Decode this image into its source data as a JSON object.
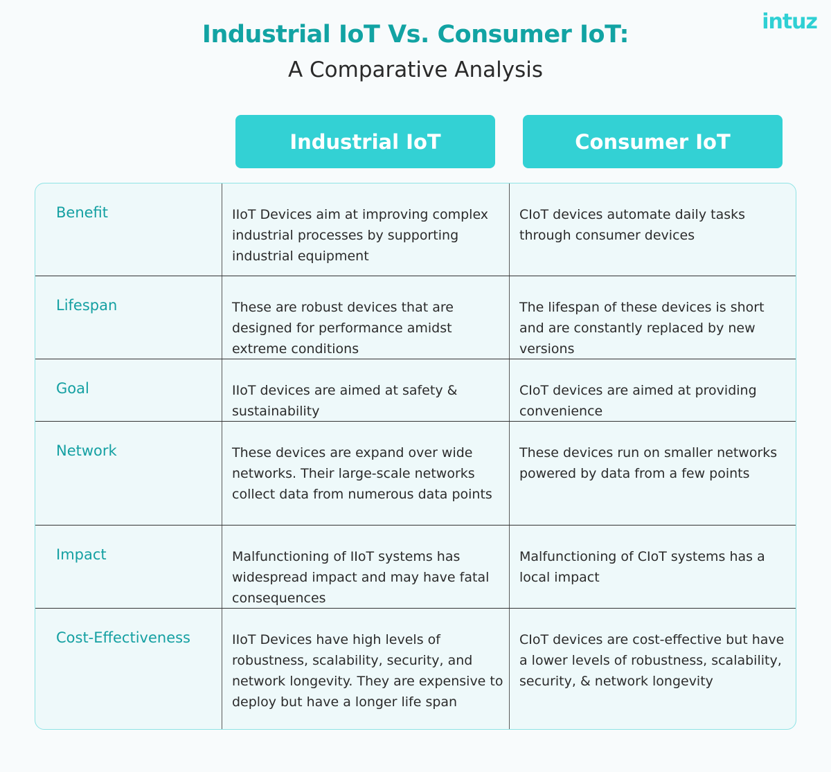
{
  "brand": {
    "logo": "intuz",
    "accent": "#33d1d4",
    "title_color": "#12a3a3"
  },
  "header": {
    "title": "Industrial IoT Vs. Consumer IoT:",
    "subtitle": "A Comparative Analysis"
  },
  "columns": [
    "Industrial IoT",
    "Consumer IoT"
  ],
  "rows": [
    {
      "label": "Benefit",
      "industrial": "IIoT Devices aim at improving complex industrial processes by supporting industrial equipment",
      "consumer": "CIoT devices automate daily tasks through consumer devices"
    },
    {
      "label": "Lifespan",
      "industrial": "These are robust devices that are designed for performance amidst extreme conditions",
      "consumer": "The lifespan of these devices is short and are constantly replaced by new versions"
    },
    {
      "label": "Goal",
      "industrial": "IIoT devices are aimed at safety & sustainability",
      "consumer": "CIoT devices are aimed at providing convenience"
    },
    {
      "label": "Network",
      "industrial": "These devices are expand over wide networks. Their large-scale networks collect data from numerous data points",
      "consumer": "These devices run on smaller networks powered by data from a few points"
    },
    {
      "label": "Impact",
      "industrial": "Malfunctioning of IIoT systems has widespread impact and may have fatal consequences",
      "consumer": "Malfunctioning of CIoT systems has a local impact"
    },
    {
      "label": "Cost-Effectiveness",
      "industrial": "IIoT Devices have high levels of robustness, scalability, security, and network longevity. They are expensive to deploy but have a longer life span",
      "consumer": "CIoT devices are cost-effective but have a lower levels of robustness, scalability, security, & network longevity"
    }
  ]
}
